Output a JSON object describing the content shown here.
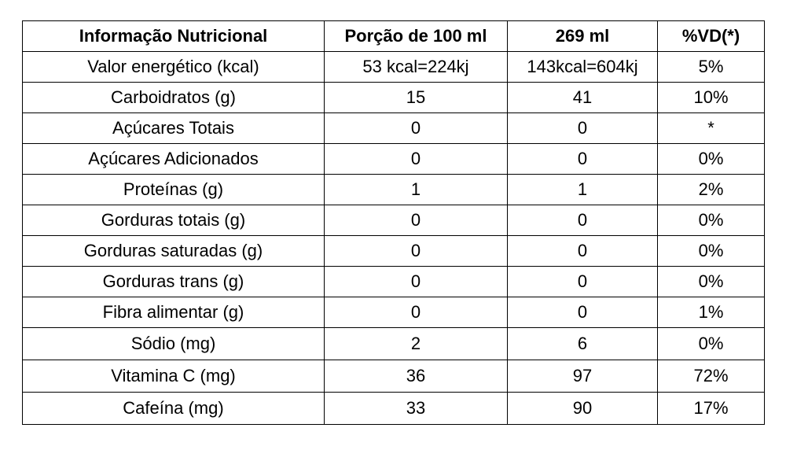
{
  "table": {
    "headers": [
      "Informação Nutricional",
      "Porção de 100 ml",
      "269 ml",
      "%VD(*)"
    ],
    "rows": [
      [
        "Valor energético (kcal)",
        "53 kcal=224kj",
        "143kcal=604kj",
        "5%"
      ],
      [
        "Carboidratos (g)",
        "15",
        "41",
        "10%"
      ],
      [
        "Açúcares Totais",
        "0",
        "0",
        "*"
      ],
      [
        "Açúcares Adicionados",
        "0",
        "0",
        "0%"
      ],
      [
        "Proteínas (g)",
        "1",
        "1",
        "2%"
      ],
      [
        "Gorduras totais (g)",
        "0",
        "0",
        "0%"
      ],
      [
        "Gorduras saturadas (g)",
        "0",
        "0",
        "0%"
      ],
      [
        "Gorduras trans (g)",
        "0",
        "0",
        "0%"
      ],
      [
        "Fibra alimentar (g)",
        "0",
        "0",
        "1%"
      ],
      [
        "Sódio (mg)",
        "2",
        "6",
        "0%"
      ],
      [
        "Vitamina C (mg)",
        "36",
        "97",
        "72%"
      ],
      [
        "Cafeína (mg)",
        "33",
        "90",
        "17%"
      ]
    ]
  }
}
